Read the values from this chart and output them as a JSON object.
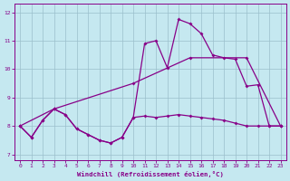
{
  "background_color": "#c5e8f0",
  "grid_color": "#9bbfcc",
  "line_color": "#880088",
  "xlabel": "Windchill (Refroidissement éolien,°C)",
  "xlim": [
    -0.5,
    23.5
  ],
  "ylim": [
    6.8,
    12.3
  ],
  "yticks": [
    7,
    8,
    9,
    10,
    11,
    12
  ],
  "xticks": [
    0,
    1,
    2,
    3,
    4,
    5,
    6,
    7,
    8,
    9,
    10,
    11,
    12,
    13,
    14,
    15,
    16,
    17,
    18,
    19,
    20,
    21,
    22,
    23
  ],
  "line1_x": [
    0,
    1,
    2,
    3,
    4,
    5,
    6,
    7,
    8,
    9,
    10,
    11,
    12,
    13,
    14,
    15,
    16,
    17,
    18,
    19,
    20,
    21,
    22,
    23
  ],
  "line1_y": [
    8.0,
    7.6,
    8.2,
    8.6,
    8.4,
    7.9,
    7.7,
    7.5,
    7.4,
    7.6,
    8.3,
    10.9,
    11.0,
    10.05,
    11.75,
    11.6,
    11.25,
    10.5,
    10.4,
    10.35,
    9.4,
    9.45,
    8.0,
    8.0
  ],
  "line2_x": [
    0,
    3,
    10,
    15,
    20,
    23
  ],
  "line2_y": [
    8.0,
    8.6,
    9.5,
    10.4,
    10.4,
    8.0
  ],
  "line3_x": [
    0,
    1,
    2,
    3,
    4,
    5,
    6,
    7,
    8,
    9,
    10,
    11,
    12,
    13,
    14,
    15,
    16,
    17,
    18,
    19,
    20,
    21,
    22,
    23
  ],
  "line3_y": [
    8.0,
    7.6,
    8.2,
    8.6,
    8.4,
    7.9,
    7.7,
    7.5,
    7.4,
    7.6,
    8.3,
    8.35,
    8.3,
    8.35,
    8.4,
    8.35,
    8.3,
    8.25,
    8.2,
    8.1,
    8.0,
    8.0,
    8.0,
    8.0
  ]
}
